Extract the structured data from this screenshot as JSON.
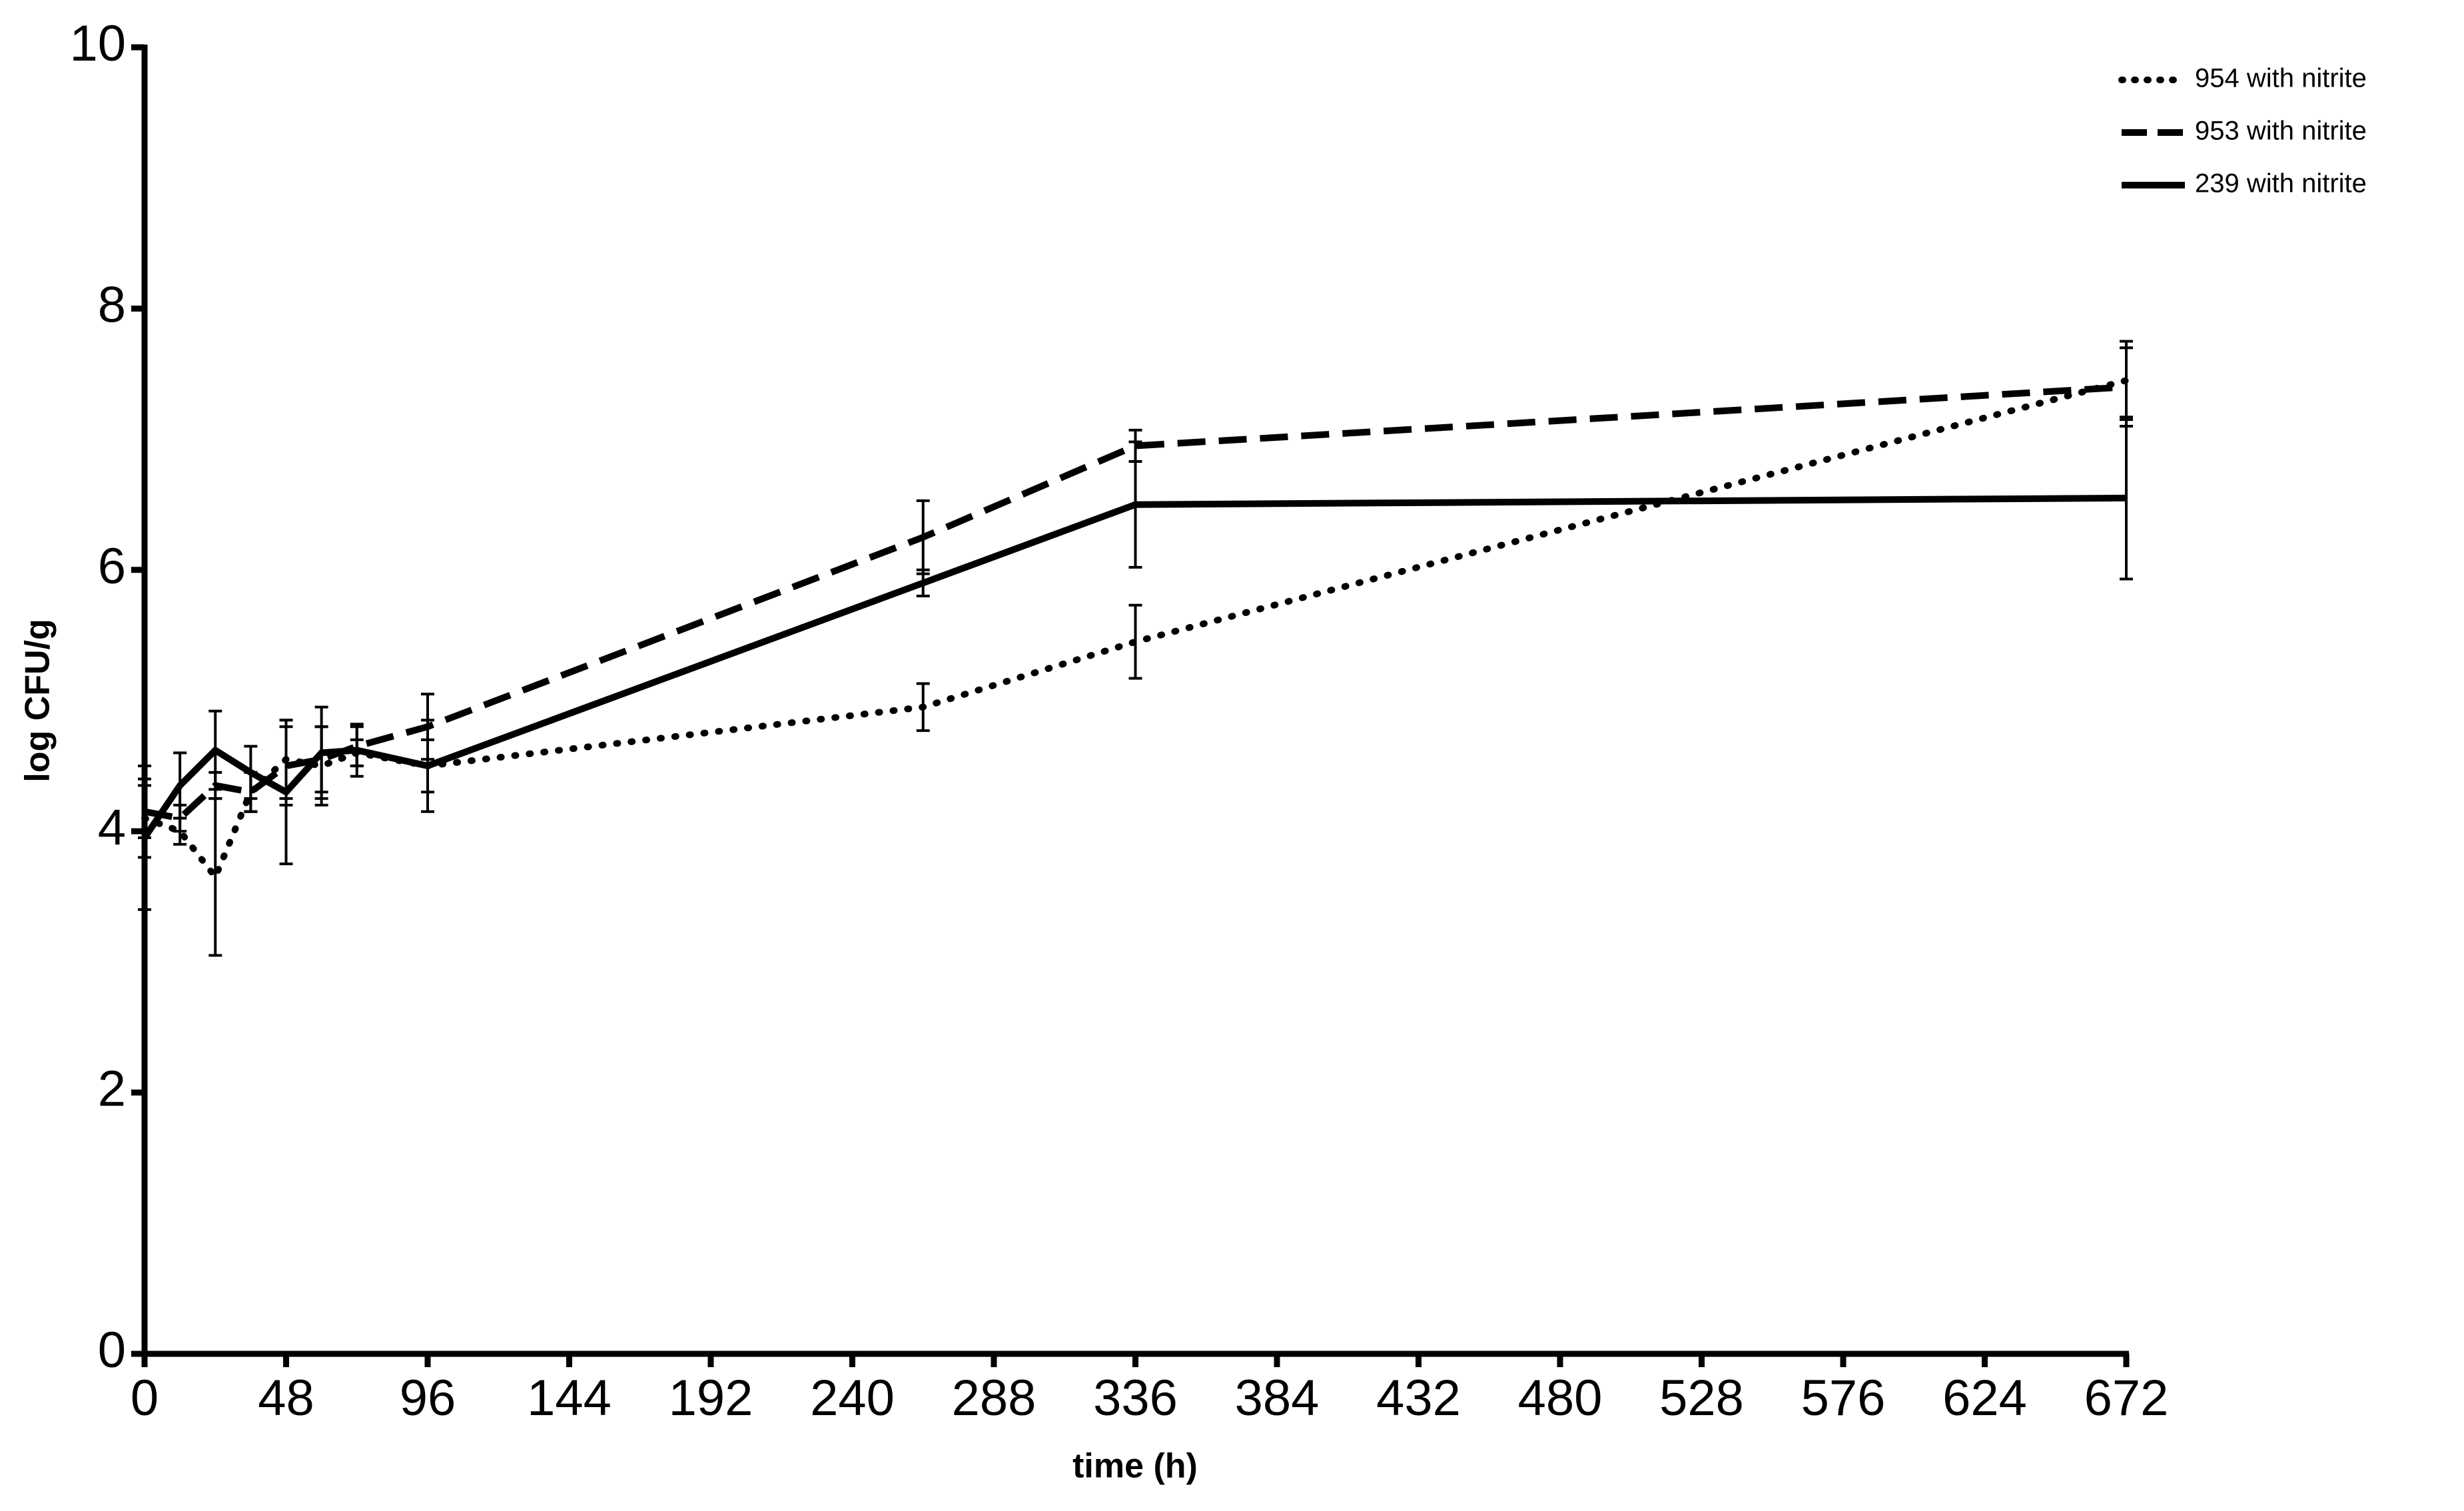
{
  "chart_data": {
    "type": "line",
    "x_label": "time (h)",
    "y_label": "log CFU/g",
    "x": [
      0,
      12,
      24,
      36,
      48,
      60,
      72,
      96,
      264,
      336,
      672
    ],
    "series": [
      {
        "name": "954 with nitrite",
        "color": "#000000",
        "dash": "dotted",
        "values": [
          4.1,
          4.0,
          3.65,
          4.3,
          4.55,
          4.5,
          4.6,
          4.5,
          4.95,
          5.45,
          7.45
        ],
        "errors": [
          0.3,
          0.1,
          0.6,
          0.15,
          0.3,
          0.3,
          0.1,
          0.2,
          0.18,
          0.28,
          0.3
        ]
      },
      {
        "name": "953 with nitrite",
        "color": "#000000",
        "dash": "dashed",
        "values": [
          4.15,
          4.1,
          4.35,
          4.3,
          4.5,
          4.55,
          4.65,
          4.8,
          6.25,
          6.95,
          7.4
        ],
        "errors": [
          0.2,
          0.1,
          0.1,
          0.15,
          0.3,
          0.25,
          0.15,
          0.25,
          0.28,
          0.12,
          0.3
        ]
      },
      {
        "name": "239 with nitrite",
        "color": "#000000",
        "dash": "solid",
        "values": [
          3.95,
          4.35,
          4.62,
          4.45,
          4.3,
          4.6,
          4.62,
          4.5,
          5.9,
          6.5,
          6.55
        ],
        "errors": [
          0.55,
          0.25,
          0.3,
          0.2,
          0.55,
          0.35,
          0.2,
          0.35,
          0.1,
          0.48,
          0.62
        ]
      }
    ],
    "xlim": [
      0,
      672
    ],
    "xticks": [
      0,
      48,
      96,
      144,
      192,
      240,
      288,
      336,
      384,
      432,
      480,
      528,
      576,
      624,
      672
    ],
    "ylim": [
      0,
      10
    ],
    "yticks": [
      0,
      2,
      4,
      6,
      8,
      10
    ],
    "grid": false,
    "legend": "top-right"
  }
}
